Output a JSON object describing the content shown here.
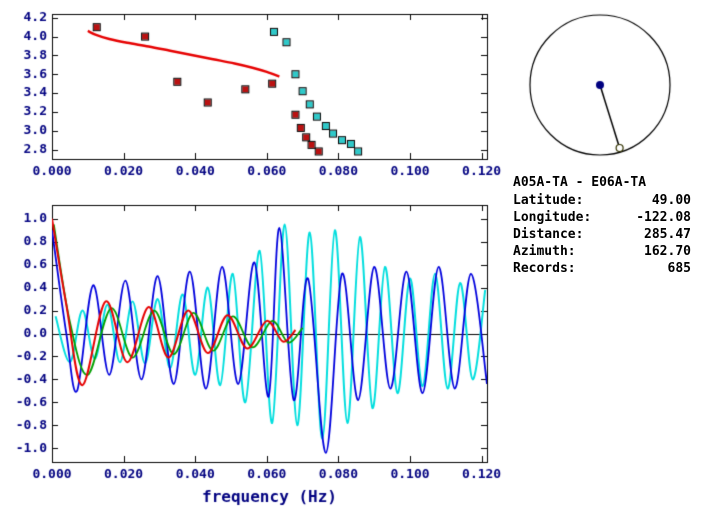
{
  "window": {
    "background": "#ffffff"
  },
  "info": {
    "title": "A05A-TA - E06A-TA",
    "rows": [
      {
        "label": "Latitude:",
        "value": "49.00"
      },
      {
        "label": "Longitude:",
        "value": "-122.08"
      },
      {
        "label": "Distance:",
        "value": "285.47"
      },
      {
        "label": "Azimuth:",
        "value": "162.70"
      },
      {
        "label": "Records:",
        "value": "685"
      }
    ]
  },
  "compass": {
    "azimuth_deg": 162.7,
    "circle_color": "#000000",
    "pointer_color": "#000000",
    "center_dot_color": "#000080",
    "end_marker_fill": "#ffffff",
    "end_marker_stroke": "#333300"
  },
  "chart_data": [
    {
      "id": "dispersion",
      "type": "line+scatter",
      "title": "",
      "xlabel": "",
      "ylabel": "",
      "xlim": [
        0,
        0.1215
      ],
      "ylim": [
        2.7,
        4.24
      ],
      "x_ticks": [
        0,
        0.02,
        0.04,
        0.06,
        0.08,
        0.1,
        0.12
      ],
      "x_tick_labels": [
        "0.000",
        "0.020",
        "0.040",
        "0.060",
        "0.080",
        "0.100",
        "0.120"
      ],
      "y_ticks": [
        2.8,
        3.0,
        3.2,
        3.4,
        3.6,
        3.8,
        4.0,
        4.2
      ],
      "y_tick_labels": [
        "2.8",
        "3.0",
        "3.2",
        "3.4",
        "3.6",
        "3.8",
        "4.0",
        "4.2"
      ],
      "zero_line": false,
      "style": {
        "tick_label_color": "#000080",
        "frame_color": "#000000"
      },
      "series": [
        {
          "name": "reference-dispersion-curve",
          "color": "#e60000",
          "width": 2.5,
          "points": [
            [
              0.01,
              4.06
            ],
            [
              0.0125,
              4.015
            ],
            [
              0.016,
              3.975
            ],
            [
              0.021,
              3.935
            ],
            [
              0.027,
              3.895
            ],
            [
              0.033,
              3.85
            ],
            [
              0.039,
              3.805
            ],
            [
              0.045,
              3.76
            ],
            [
              0.051,
              3.715
            ],
            [
              0.056,
              3.67
            ],
            [
              0.06,
              3.625
            ],
            [
              0.0635,
              3.575
            ]
          ]
        }
      ],
      "markers": [
        {
          "name": "causal-velocity-picks",
          "color": "#bb1111",
          "points": [
            [
              0.0125,
              4.1
            ],
            [
              0.026,
              4.0
            ],
            [
              0.035,
              3.52
            ],
            [
              0.0435,
              3.3
            ],
            [
              0.054,
              3.44
            ],
            [
              0.0615,
              3.5
            ],
            [
              0.068,
              3.17
            ],
            [
              0.0695,
              3.03
            ],
            [
              0.071,
              2.93
            ],
            [
              0.0725,
              2.85
            ],
            [
              0.0745,
              2.78
            ]
          ]
        },
        {
          "name": "acausal-velocity-picks",
          "color": "#2fc9c9",
          "points": [
            [
              0.062,
              4.05
            ],
            [
              0.0655,
              3.94
            ],
            [
              0.068,
              3.6
            ],
            [
              0.07,
              3.42
            ],
            [
              0.072,
              3.28
            ],
            [
              0.074,
              3.15
            ],
            [
              0.0765,
              3.05
            ],
            [
              0.0785,
              2.97
            ],
            [
              0.081,
              2.9
            ],
            [
              0.0835,
              2.86
            ],
            [
              0.0855,
              2.78
            ]
          ]
        }
      ]
    },
    {
      "id": "spectrum",
      "type": "line",
      "title": "",
      "xlabel": "frequency (Hz)",
      "ylabel": "",
      "xlim": [
        0,
        0.1215
      ],
      "ylim": [
        -1.12,
        1.12
      ],
      "x_ticks": [
        0,
        0.02,
        0.04,
        0.06,
        0.08,
        0.1,
        0.12
      ],
      "x_tick_labels": [
        "0.000",
        "0.020",
        "0.040",
        "0.060",
        "0.080",
        "0.100",
        "0.120"
      ],
      "y_ticks": [
        -1.0,
        -0.8,
        -0.6,
        -0.4,
        -0.2,
        0.0,
        0.2,
        0.4,
        0.6,
        0.8,
        1.0
      ],
      "y_tick_labels": [
        "-1.0",
        "-0.8",
        "-0.6",
        "-0.4",
        "-0.2",
        "0.0",
        "0.2",
        "0.4",
        "0.6",
        "0.8",
        "1.0"
      ],
      "zero_line": true,
      "style": {
        "tick_label_color": "#000080",
        "frame_color": "#000000"
      },
      "series": [
        {
          "name": "acausal-spectrum",
          "color": "#00dede",
          "width": 2,
          "points": [
            [
              0.001,
              0.15
            ],
            [
              0.005,
              -0.25
            ],
            [
              0.0085,
              0.2
            ],
            [
              0.012,
              -0.22
            ],
            [
              0.0155,
              0.25
            ],
            [
              0.019,
              -0.25
            ],
            [
              0.0225,
              0.28
            ],
            [
              0.026,
              -0.26
            ],
            [
              0.0295,
              0.3
            ],
            [
              0.033,
              -0.3
            ],
            [
              0.0365,
              0.34
            ],
            [
              0.04,
              -0.36
            ],
            [
              0.0435,
              0.4
            ],
            [
              0.047,
              -0.45
            ],
            [
              0.0505,
              0.52
            ],
            [
              0.054,
              -0.6
            ],
            [
              0.058,
              0.72
            ],
            [
              0.0615,
              -0.78
            ],
            [
              0.065,
              0.95
            ],
            [
              0.0685,
              -0.8
            ],
            [
              0.072,
              0.88
            ],
            [
              0.0755,
              -0.92
            ],
            [
              0.079,
              0.9
            ],
            [
              0.0825,
              -0.78
            ],
            [
              0.086,
              0.84
            ],
            [
              0.0895,
              -0.65
            ],
            [
              0.093,
              0.58
            ],
            [
              0.0965,
              -0.52
            ],
            [
              0.1,
              0.48
            ],
            [
              0.1035,
              -0.46
            ],
            [
              0.107,
              0.52
            ],
            [
              0.1105,
              -0.48
            ],
            [
              0.114,
              0.44
            ],
            [
              0.1175,
              -0.4
            ],
            [
              0.121,
              0.38
            ]
          ]
        },
        {
          "name": "causal-spectrum",
          "color": "#0000dd",
          "width": 1.8,
          "points": [
            [
              0,
              0.9
            ],
            [
              0.004,
              0.0
            ],
            [
              0.007,
              -0.5
            ],
            [
              0.0115,
              0.42
            ],
            [
              0.016,
              -0.36
            ],
            [
              0.0205,
              0.46
            ],
            [
              0.025,
              -0.4
            ],
            [
              0.0295,
              0.5
            ],
            [
              0.034,
              -0.44
            ],
            [
              0.0385,
              0.54
            ],
            [
              0.043,
              -0.48
            ],
            [
              0.0475,
              0.58
            ],
            [
              0.052,
              -0.44
            ],
            [
              0.0565,
              0.62
            ],
            [
              0.0605,
              -0.55
            ],
            [
              0.0635,
              0.92
            ],
            [
              0.0675,
              -0.58
            ],
            [
              0.0715,
              0.48
            ],
            [
              0.0765,
              -1.04
            ],
            [
              0.081,
              0.52
            ],
            [
              0.0855,
              -0.58
            ],
            [
              0.09,
              0.58
            ],
            [
              0.0945,
              -0.48
            ],
            [
              0.099,
              0.54
            ],
            [
              0.1035,
              -0.52
            ],
            [
              0.108,
              0.58
            ],
            [
              0.1125,
              -0.48
            ],
            [
              0.117,
              0.52
            ],
            [
              0.1215,
              -0.44
            ]
          ]
        },
        {
          "name": "bessel-fit",
          "color": "#00a000",
          "width": 1.8,
          "points": [
            [
              0.0005,
              0.95
            ],
            [
              0.005,
              0.1
            ],
            [
              0.01,
              -0.36
            ],
            [
              0.0165,
              0.22
            ],
            [
              0.0225,
              -0.21
            ],
            [
              0.0285,
              0.2
            ],
            [
              0.034,
              -0.18
            ],
            [
              0.0395,
              0.18
            ],
            [
              0.045,
              -0.15
            ],
            [
              0.0505,
              0.15
            ],
            [
              0.056,
              -0.12
            ],
            [
              0.0615,
              0.11
            ],
            [
              0.066,
              -0.08
            ],
            [
              0.07,
              0.05
            ]
          ]
        },
        {
          "name": "reference-bessel",
          "color": "#e60000",
          "width": 2,
          "points": [
            [
              0,
              1.0
            ],
            [
              0.004,
              0.25
            ],
            [
              0.0085,
              -0.45
            ],
            [
              0.015,
              0.28
            ],
            [
              0.021,
              -0.25
            ],
            [
              0.027,
              0.23
            ],
            [
              0.0325,
              -0.21
            ],
            [
              0.038,
              0.2
            ],
            [
              0.0435,
              -0.17
            ],
            [
              0.049,
              0.16
            ],
            [
              0.0545,
              -0.13
            ],
            [
              0.06,
              0.11
            ],
            [
              0.0645,
              -0.07
            ],
            [
              0.068,
              0.03
            ]
          ]
        }
      ]
    }
  ]
}
